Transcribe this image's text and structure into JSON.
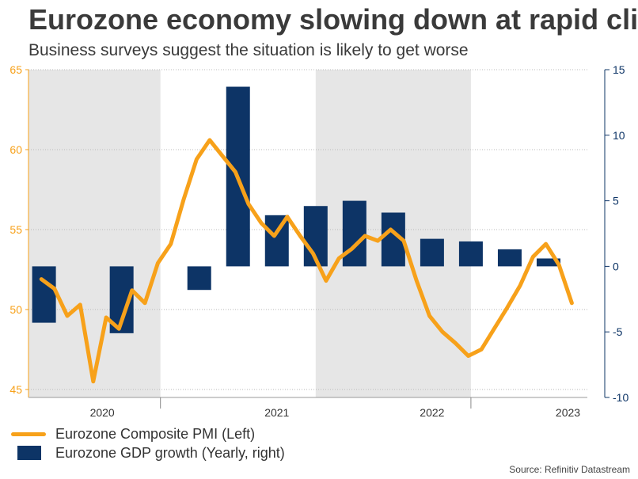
{
  "title": "Eurozone economy slowing down at rapid clip",
  "subtitle": "Business surveys suggest the situation is likely to get worse",
  "source": "Source: Refinitiv Datastream",
  "colors": {
    "pmi": "#f7a11a",
    "gdp": "#0d3466",
    "left_axis": "#f7a11a",
    "right_axis": "#0d3466",
    "shade": "#e6e6e6",
    "grid": "#bbbbbb"
  },
  "legend": [
    {
      "label": "Eurozone Composite PMI (Left)",
      "type": "line"
    },
    {
      "label": "Eurozone GDP growth (Yearly, right)",
      "type": "bar"
    }
  ],
  "chart_data": {
    "type": "bar+line",
    "x_domain": [
      2019.9,
      2023.5
    ],
    "x_labels": [
      {
        "label": "2020",
        "x": 2020.375
      },
      {
        "label": "2021",
        "x": 2021.5
      },
      {
        "label": "2022",
        "x": 2022.5
      },
      {
        "label": "2023",
        "x": 2023.375
      }
    ],
    "year_separators": [
      2020.75,
      2022.75
    ],
    "shaded_periods": [
      [
        2019.9,
        2020.75
      ],
      [
        2021.75,
        2022.75
      ]
    ],
    "left_axis": {
      "label": "Eurozone Composite PMI",
      "range": [
        44.5,
        65
      ],
      "ticks": [
        45,
        50,
        55,
        60,
        65
      ]
    },
    "right_axis": {
      "label": "Eurozone GDP growth (Yearly)",
      "range": [
        -10,
        15
      ],
      "ticks": [
        -10,
        -5,
        0,
        5,
        10,
        15
      ]
    },
    "series": [
      {
        "name": "Eurozone GDP growth (Yearly, right)",
        "type": "bar",
        "axis": "right",
        "x": [
          2020.0,
          2020.25,
          2020.5,
          2020.75,
          2021.0,
          2021.25,
          2021.5,
          2021.75,
          2022.0,
          2022.25,
          2022.5,
          2022.75,
          2023.0,
          2023.25
        ],
        "values": [
          -4.3,
          0,
          -5.1,
          0,
          -1.8,
          13.7,
          3.9,
          4.6,
          5.0,
          4.1,
          2.1,
          1.9,
          1.3,
          0.6
        ]
      },
      {
        "name": "Eurozone Composite PMI (Left)",
        "type": "line",
        "axis": "left",
        "x": [
          2019.983,
          2020.067,
          2020.15,
          2020.233,
          2020.317,
          2020.4,
          2020.483,
          2020.567,
          2020.65,
          2020.733,
          2020.817,
          2020.9,
          2020.983,
          2021.067,
          2021.15,
          2021.233,
          2021.317,
          2021.4,
          2021.483,
          2021.567,
          2021.65,
          2021.733,
          2021.817,
          2021.9,
          2021.983,
          2022.067,
          2022.15,
          2022.233,
          2022.317,
          2022.4,
          2022.483,
          2022.567,
          2022.65,
          2022.733,
          2022.817,
          2022.9,
          2022.983,
          2023.067,
          2023.15,
          2023.233,
          2023.317,
          2023.4
        ],
        "values": [
          51.9,
          51.3,
          49.6,
          50.3,
          45.5,
          49.5,
          48.8,
          51.2,
          50.4,
          52.9,
          54.1,
          56.9,
          59.4,
          60.6,
          59.6,
          58.6,
          56.6,
          55.4,
          54.6,
          55.8,
          54.6,
          53.5,
          51.8,
          53.2,
          53.8,
          54.6,
          54.3,
          55.0,
          54.3,
          51.8,
          49.6,
          48.6,
          47.9,
          47.1,
          47.5,
          48.8,
          50.1,
          51.5,
          53.3,
          54.1,
          52.8,
          50.4
        ]
      }
    ]
  }
}
